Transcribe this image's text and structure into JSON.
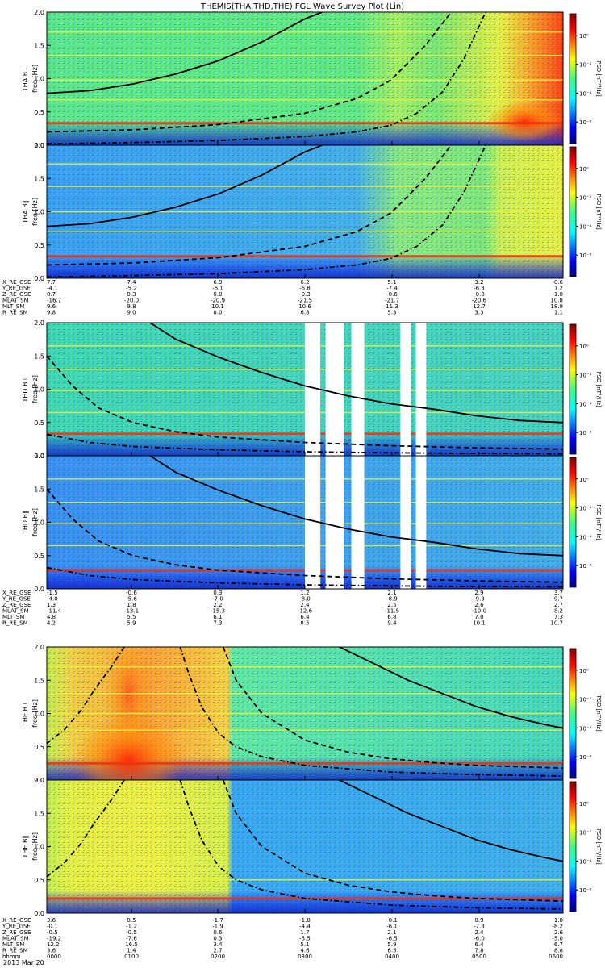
{
  "title": "THEMIS(THA,THD,THE) FGL Wave Survey Plot (Lin)",
  "date_label": "2013 Mar 20",
  "colorbar": {
    "label": "PSD [nT²/Hz]",
    "tick_labels": [
      "10⁰",
      "10⁻²",
      "10⁻⁴",
      "10⁻⁶"
    ],
    "tick_values": [
      0,
      -2,
      -4,
      -6
    ],
    "range_log": [
      -7.5,
      1.5
    ]
  },
  "freq_axis": {
    "label": "freq [Hz]",
    "ticks": [
      "0.0",
      "0.5",
      "1.0",
      "1.5",
      "2.0"
    ],
    "tick_values": [
      0,
      0.5,
      1.0,
      1.5,
      2.0
    ],
    "ylim": [
      0,
      2
    ]
  },
  "panels": [
    {
      "id": "tha-bl",
      "probe_label": "THA B⊥",
      "group": 0,
      "slot": 0,
      "background": "tha-perp",
      "bright_lines": [
        0.33,
        0.68,
        0.98,
        1.35,
        1.7
      ],
      "gaps": []
    },
    {
      "id": "tha-bpar",
      "probe_label": "THA B∥",
      "group": 0,
      "slot": 1,
      "background": "tha-par",
      "bright_lines": [
        0.33,
        0.7,
        1.0,
        1.38,
        1.72
      ],
      "gaps": []
    },
    {
      "id": "thd-bl",
      "probe_label": "THD B⊥",
      "group": 1,
      "slot": 0,
      "background": "thd-perp",
      "bright_lines": [
        0.33,
        0.65,
        0.98,
        1.3,
        1.65
      ],
      "gaps": [
        [
          0.5,
          0.53
        ],
        [
          0.54,
          0.575
        ],
        [
          0.59,
          0.615
        ],
        [
          0.685,
          0.705
        ],
        [
          0.715,
          0.735
        ]
      ]
    },
    {
      "id": "thd-bpar",
      "probe_label": "THD B∥",
      "group": 1,
      "slot": 1,
      "background": "thd-par",
      "bright_lines": [
        0.28,
        0.65,
        0.98,
        1.3,
        1.65
      ],
      "gaps": [
        [
          0.5,
          0.53
        ],
        [
          0.54,
          0.575
        ],
        [
          0.59,
          0.615
        ],
        [
          0.685,
          0.705
        ],
        [
          0.715,
          0.735
        ]
      ]
    },
    {
      "id": "the-bl",
      "probe_label": "THE B⊥",
      "group": 2,
      "slot": 0,
      "background": "the-perp",
      "bright_lines": [
        0.25,
        0.75,
        1.0,
        1.3,
        1.7
      ],
      "gaps": []
    },
    {
      "id": "the-bpar",
      "probe_label": "THE B∥",
      "group": 2,
      "slot": 1,
      "background": "the-par",
      "bright_lines": [
        0.22,
        0.5
      ],
      "gaps": []
    }
  ],
  "ephemeris": [
    {
      "rows": [
        {
          "label": "X_RE_GSE",
          "values": [
            "7.7",
            "7.4",
            "6.9",
            "6.2",
            "5.1",
            "3.2",
            "-0.6"
          ]
        },
        {
          "label": "Y_RE_GSE",
          "values": [
            "-4.1",
            "-5.2",
            "-6.1",
            "-6.8",
            "-7.4",
            "-6.3",
            "1.2"
          ]
        },
        {
          "label": "Z_RE_GSE",
          "values": [
            "0.7",
            "0.3",
            "0.0",
            "-0.3",
            "-0.6",
            "-0.8",
            "-1.0"
          ]
        },
        {
          "label": "MLAT_SM",
          "values": [
            "-16.7",
            "-20.0",
            "-20.9",
            "-21.5",
            "-21.7",
            "-20.6",
            "10.8"
          ]
        },
        {
          "label": "MLT_SM",
          "values": [
            "9.6",
            "9.8",
            "10.1",
            "10.6",
            "11.3",
            "12.7",
            "18.9"
          ]
        },
        {
          "label": "R_RE_SM",
          "values": [
            "9.8",
            "9.0",
            "8.0",
            "6.8",
            "5.3",
            "3.3",
            "1.1"
          ]
        }
      ]
    },
    {
      "rows": [
        {
          "label": "X_RE_GSE",
          "values": [
            "-1.5",
            "-0.6",
            "0.3",
            "1.2",
            "2.1",
            "2.9",
            "3.7"
          ]
        },
        {
          "label": "Y_RE_GSE",
          "values": [
            "-4.0",
            "-5.6",
            "-7.0",
            "-8.0",
            "-8.9",
            "-9.3",
            "-9.7"
          ]
        },
        {
          "label": "Z_RE_GSE",
          "values": [
            "1.3",
            "1.8",
            "2.2",
            "2.4",
            "2.5",
            "2.6",
            "2.7"
          ]
        },
        {
          "label": "MLAT_SM",
          "values": [
            "-11.4",
            "-13.1",
            "-15.3",
            "-12.6",
            "-11.5",
            "-10.0",
            "-8.2"
          ]
        },
        {
          "label": "MLT_SM",
          "values": [
            "4.8",
            "5.5",
            "6.1",
            "6.4",
            "6.8",
            "7.0",
            "7.3"
          ]
        },
        {
          "label": "R_RE_SM",
          "values": [
            "4.2",
            "5.9",
            "7.3",
            "8.5",
            "9.4",
            "10.1",
            "10.7"
          ]
        }
      ]
    },
    {
      "rows": [
        {
          "label": "X_RE_GSE",
          "values": [
            "3.6",
            "0.5",
            "-1.7",
            "-1.0",
            "-0.1",
            "0.9",
            "1.8"
          ]
        },
        {
          "label": "Y_RE_GSE",
          "values": [
            "-0.1",
            "-1.2",
            "-1.9",
            "-4.4",
            "-6.1",
            "-7.3",
            "-8.2"
          ]
        },
        {
          "label": "Z_RE_GSE",
          "values": [
            "-0.5",
            "-0.5",
            "0.6",
            "1.7",
            "2.1",
            "2.4",
            "2.6"
          ]
        },
        {
          "label": "MLAT_SM",
          "values": [
            "-19.2",
            "-7.6",
            "0.3",
            "-5.5",
            "-6.5",
            "-6.0",
            "-5.0"
          ]
        },
        {
          "label": "MLT_SM",
          "values": [
            "12.2",
            "16.5",
            "3.4",
            "5.1",
            "5.9",
            "6.4",
            "6.7"
          ]
        },
        {
          "label": "R_RE_SM",
          "values": [
            "3.6",
            "1.4",
            "2.7",
            "4.6",
            "6.5",
            "7.8",
            "8.8"
          ]
        },
        {
          "label": "hhmm",
          "values": [
            "0000",
            "0100",
            "0200",
            "0300",
            "0400",
            "0500",
            "0600"
          ]
        }
      ]
    }
  ],
  "chart_data": {
    "type": "heatmap",
    "title": "THEMIS(THA,THD,THE) FGL Wave Survey Plot (Lin)",
    "xlabel": "hhmm",
    "ylabel": "freq [Hz]",
    "x_ticks": [
      "0000",
      "0100",
      "0200",
      "0300",
      "0400",
      "0500",
      "0600"
    ],
    "x_range_hours": [
      0,
      6
    ],
    "ylim": [
      0,
      2
    ],
    "colorscale": "jet",
    "z_label": "PSD [nT²/Hz]",
    "z_range_log10": [
      -7.5,
      1.5
    ],
    "curves": [
      {
        "panel": "tha",
        "style": "solid",
        "x": [
          0,
          0.5,
          1.0,
          1.5,
          2.0,
          2.5,
          3.0,
          3.2
        ],
        "y": [
          0.78,
          0.82,
          0.92,
          1.07,
          1.27,
          1.55,
          1.9,
          2.0
        ]
      },
      {
        "panel": "tha",
        "style": "dashed",
        "x": [
          0,
          1.0,
          2.0,
          3.0,
          3.6,
          4.0,
          4.4,
          4.7
        ],
        "y": [
          0.2,
          0.23,
          0.31,
          0.48,
          0.7,
          0.98,
          1.5,
          2.0
        ]
      },
      {
        "panel": "tha",
        "style": "dashdot",
        "x": [
          0,
          1.0,
          2.0,
          3.0,
          3.6,
          4.0,
          4.3,
          4.6,
          4.85,
          5.1
        ],
        "y": [
          0.02,
          0.04,
          0.07,
          0.13,
          0.2,
          0.3,
          0.48,
          0.8,
          1.3,
          2.0
        ]
      },
      {
        "panel": "thd",
        "style": "solid",
        "x": [
          1.2,
          1.5,
          2.0,
          2.5,
          3.0,
          3.5,
          4.0,
          4.5,
          5.0,
          5.5,
          6.0
        ],
        "y": [
          2.0,
          1.75,
          1.48,
          1.25,
          1.05,
          0.9,
          0.78,
          0.7,
          0.6,
          0.53,
          0.5
        ]
      },
      {
        "panel": "thd",
        "style": "dashed",
        "x": [
          0,
          0.3,
          0.6,
          1.0,
          1.5,
          2.0,
          3.0,
          4.0,
          5.0,
          6.0
        ],
        "y": [
          1.5,
          1.05,
          0.72,
          0.5,
          0.36,
          0.28,
          0.2,
          0.15,
          0.12,
          0.1
        ]
      },
      {
        "panel": "thd",
        "style": "dashdot",
        "x": [
          0,
          0.5,
          1.0,
          2.0,
          3.0,
          4.0,
          5.0,
          6.0
        ],
        "y": [
          0.32,
          0.2,
          0.14,
          0.09,
          0.06,
          0.045,
          0.035,
          0.03
        ]
      },
      {
        "panel": "the",
        "style": "dashdot",
        "x": [
          0,
          0.2,
          0.4,
          0.55,
          0.75,
          0.9,
          1.0
        ],
        "y": [
          0.55,
          0.75,
          1.05,
          1.35,
          1.7,
          2.0,
          2.3
        ]
      },
      {
        "panel": "the",
        "style": "dashdot",
        "x": [
          1.55,
          1.65,
          1.8,
          2.0,
          2.2,
          2.5,
          3.0,
          4.0,
          5.0,
          6.0
        ],
        "y": [
          2.0,
          1.6,
          1.1,
          0.7,
          0.5,
          0.35,
          0.22,
          0.12,
          0.08,
          0.06
        ]
      },
      {
        "panel": "the",
        "style": "dashed",
        "x": [
          2.05,
          2.2,
          2.5,
          3.0,
          3.5,
          4.0,
          4.5,
          5.0,
          5.5,
          6.0
        ],
        "y": [
          2.0,
          1.5,
          1.0,
          0.6,
          0.42,
          0.32,
          0.26,
          0.22,
          0.2,
          0.18
        ]
      },
      {
        "panel": "the",
        "style": "solid",
        "x": [
          3.4,
          3.8,
          4.2,
          4.6,
          5.0,
          5.4,
          5.8,
          6.0
        ],
        "y": [
          2.0,
          1.75,
          1.5,
          1.3,
          1.1,
          0.95,
          0.83,
          0.78
        ]
      }
    ]
  }
}
